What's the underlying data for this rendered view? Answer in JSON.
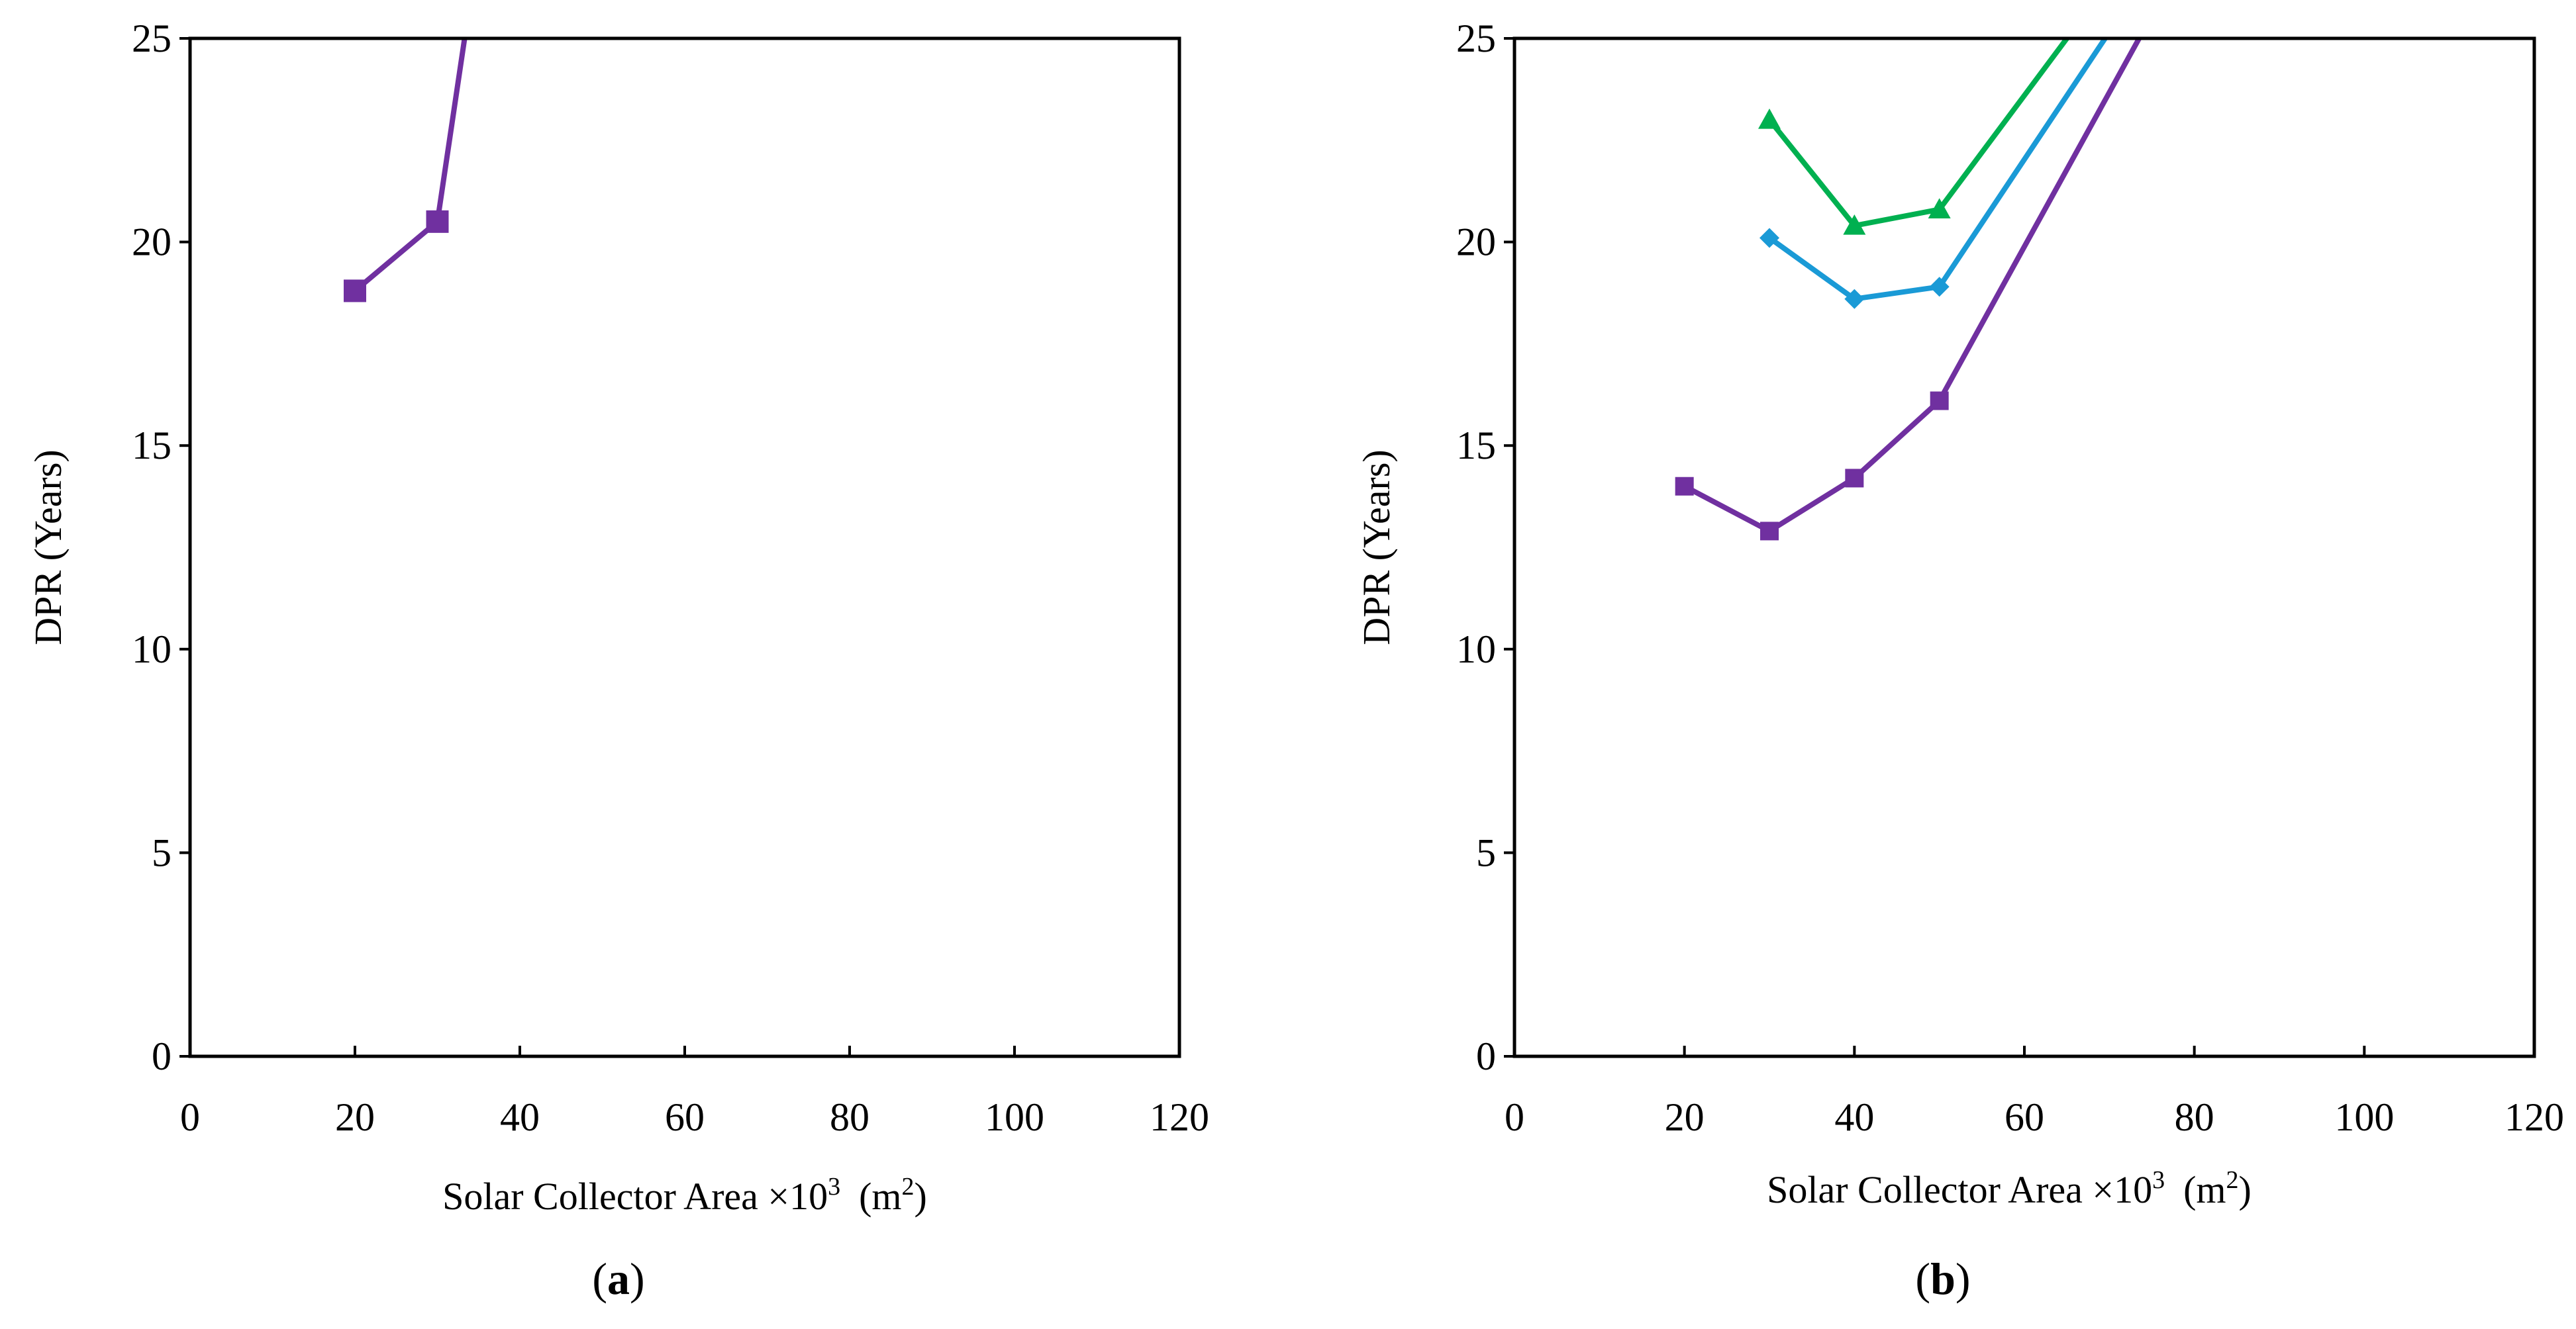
{
  "chart_data": [
    {
      "type": "line",
      "panel_label": "a",
      "title": "",
      "xlabel": "Solar Collector Area ×10",
      "xlabel_sup": "3",
      "xlabel_unit": "(m",
      "xlabel_unit_sup": "2",
      "xlabel_unit_close": ")",
      "ylabel": "DPR (Years)",
      "xlim": [
        0,
        120
      ],
      "ylim": [
        0,
        25
      ],
      "xticks": [
        "0",
        "20",
        "40",
        "60",
        "80",
        "100",
        "120"
      ],
      "yticks": [
        "0",
        "5",
        "10",
        "15",
        "20",
        "25"
      ],
      "grid": false,
      "legend": "none",
      "series": [
        {
          "name": "purple",
          "color": "#7030a0",
          "marker": "square",
          "x": [
            20,
            30,
            33.3
          ],
          "y": [
            18.8,
            20.5,
            25
          ],
          "marker_mask": [
            true,
            true,
            false
          ]
        }
      ]
    },
    {
      "type": "line",
      "panel_label": "b",
      "title": "",
      "xlabel": "Solar Collector Area ×10",
      "xlabel_sup": "3",
      "xlabel_unit": "(m",
      "xlabel_unit_sup": "2",
      "xlabel_unit_close": ")",
      "ylabel": "DPR (Years)",
      "xlim": [
        0,
        120
      ],
      "ylim": [
        0,
        25
      ],
      "xticks": [
        "0",
        "20",
        "40",
        "60",
        "80",
        "100",
        "120"
      ],
      "yticks": [
        "0",
        "5",
        "10",
        "15",
        "20",
        "25"
      ],
      "grid": false,
      "legend": "none",
      "series": [
        {
          "name": "green",
          "color": "#00b050",
          "marker": "triangle",
          "x": [
            30,
            40,
            50,
            65
          ],
          "y": [
            23.0,
            20.4,
            20.8,
            25
          ],
          "marker_mask": [
            true,
            true,
            true,
            false
          ]
        },
        {
          "name": "blue",
          "color": "#1a9ad6",
          "marker": "diamond",
          "x": [
            30,
            40,
            50,
            69.5
          ],
          "y": [
            20.1,
            18.6,
            18.9,
            25
          ],
          "marker_mask": [
            true,
            true,
            true,
            false
          ]
        },
        {
          "name": "purple",
          "color": "#7030a0",
          "marker": "square",
          "x": [
            20,
            30,
            40,
            50,
            73.5
          ],
          "y": [
            14.0,
            12.9,
            14.2,
            16.1,
            25
          ],
          "marker_mask": [
            true,
            true,
            true,
            true,
            false
          ]
        }
      ]
    }
  ]
}
